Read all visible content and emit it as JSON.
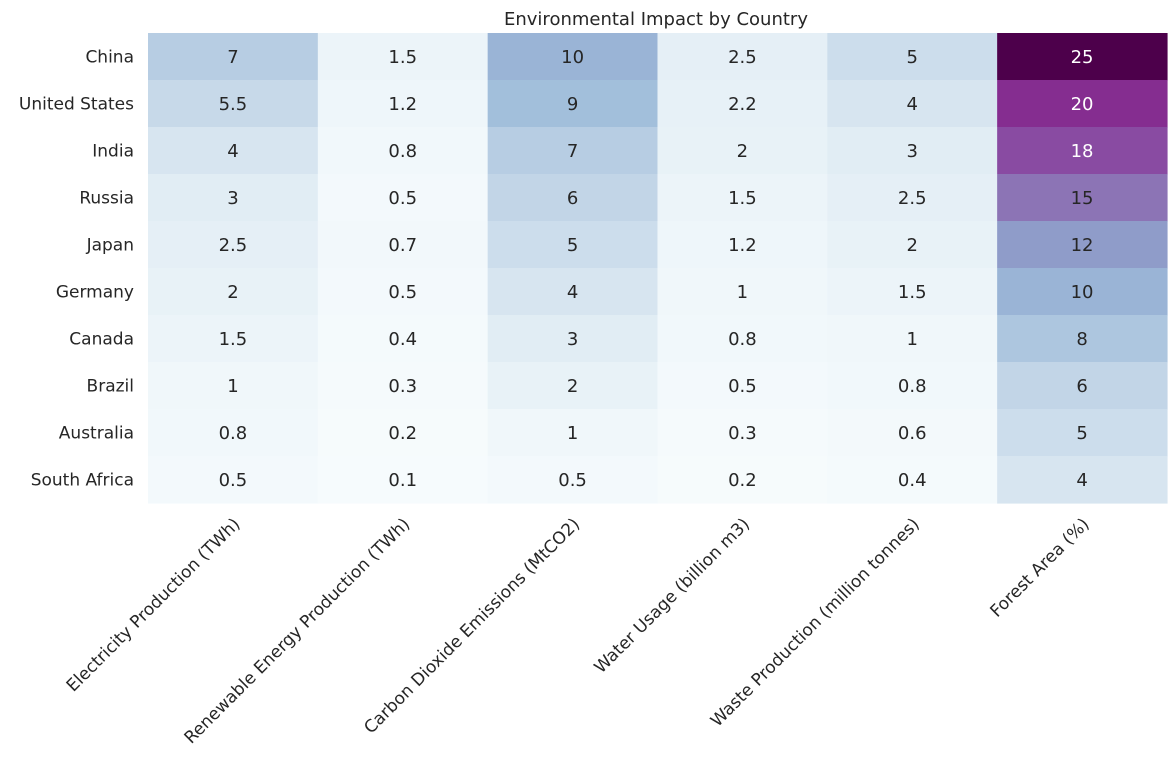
{
  "chart_data": {
    "type": "heatmap",
    "title": "Environmental Impact by Country",
    "xlabel": "",
    "ylabel": "",
    "colormap": "BuPu",
    "color_range": [
      0,
      25
    ],
    "columns": [
      "Electricity Production (TWh)",
      "Renewable Energy Production (TWh)",
      "Carbon Dioxide Emissions (MtCO2)",
      "Water Usage (billion m3)",
      "Waste Production (million tonnes)",
      "Forest Area (%)"
    ],
    "rows": [
      "China",
      "United States",
      "India",
      "Russia",
      "Japan",
      "Germany",
      "Canada",
      "Brazil",
      "Australia",
      "South Africa"
    ],
    "values": [
      [
        7,
        1.5,
        10,
        2.5,
        5,
        25
      ],
      [
        5.5,
        1.2,
        9,
        2.2,
        4,
        20
      ],
      [
        4,
        0.8,
        7,
        2,
        3,
        18
      ],
      [
        3,
        0.5,
        6,
        1.5,
        2.5,
        15
      ],
      [
        2.5,
        0.7,
        5,
        1.2,
        2,
        12
      ],
      [
        2,
        0.5,
        4,
        1,
        1.5,
        10
      ],
      [
        1.5,
        0.4,
        3,
        0.8,
        1,
        8
      ],
      [
        1,
        0.3,
        2,
        0.5,
        0.8,
        6
      ],
      [
        0.8,
        0.2,
        1,
        0.3,
        0.6,
        5
      ],
      [
        0.5,
        0.1,
        0.5,
        0.2,
        0.4,
        4
      ]
    ],
    "grid": false,
    "legend": "none"
  }
}
